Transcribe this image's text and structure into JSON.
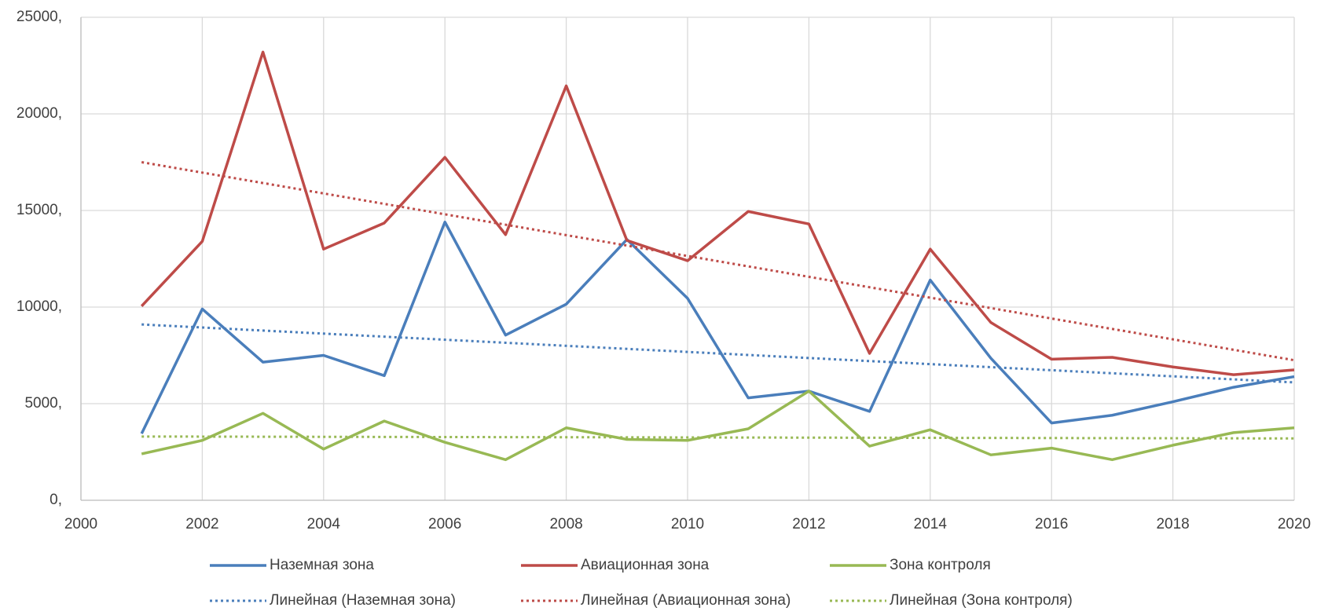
{
  "chart_data": {
    "type": "line",
    "x": [
      2001,
      2002,
      2003,
      2004,
      2005,
      2006,
      2007,
      2008,
      2009,
      2010,
      2011,
      2012,
      2013,
      2014,
      2015,
      2016,
      2017,
      2018,
      2019,
      2020
    ],
    "series": [
      {
        "name": "Наземная зона",
        "color": "#4a7ebb",
        "values": [
          3450,
          9900,
          7150,
          7500,
          6450,
          14400,
          8550,
          10150,
          13500,
          10450,
          5300,
          5650,
          4600,
          11400,
          7350,
          4000,
          4400,
          5100,
          5850,
          6400
        ]
      },
      {
        "name": "Авиационная зона",
        "color": "#be4b48",
        "values": [
          10050,
          13400,
          23200,
          13000,
          14350,
          17750,
          13750,
          21450,
          13450,
          12400,
          14950,
          14300,
          7600,
          13000,
          9200,
          7300,
          7400,
          6900,
          6500,
          6750
        ]
      },
      {
        "name": "Зона контроля",
        "color": "#98b954",
        "values": [
          2400,
          3100,
          4500,
          2650,
          4100,
          3000,
          2100,
          3750,
          3150,
          3100,
          3700,
          5650,
          2800,
          3650,
          2350,
          2700,
          2100,
          2850,
          3500,
          3750
        ]
      },
      {
        "name": "Линейная (Наземная зона)",
        "color": "#4a7ebb",
        "dashed": true,
        "x": [
          2001,
          2020
        ],
        "values": [
          9100,
          6100
        ]
      },
      {
        "name": "Линейная (Авиационная зона)",
        "color": "#be4b48",
        "dashed": true,
        "x": [
          2001,
          2020
        ],
        "values": [
          17500,
          7250
        ]
      },
      {
        "name": "Линейная (Зона контроля)",
        "color": "#98b954",
        "dashed": true,
        "x": [
          2001,
          2020
        ],
        "values": [
          3300,
          3200
        ]
      }
    ],
    "xlim": [
      2000,
      2020
    ],
    "xticks": [
      2000,
      2002,
      2004,
      2006,
      2008,
      2010,
      2012,
      2014,
      2016,
      2018,
      2020
    ],
    "ylim": [
      0,
      25000
    ],
    "yticks": [
      {
        "value": 0,
        "label": "0,"
      },
      {
        "value": 5000,
        "label": "5000,"
      },
      {
        "value": 10000,
        "label": "10000,"
      },
      {
        "value": 15000,
        "label": "15000,"
      },
      {
        "value": 20000,
        "label": "20000,"
      },
      {
        "value": 25000,
        "label": "25000,"
      }
    ],
    "grid": true,
    "legend": "bottom"
  }
}
